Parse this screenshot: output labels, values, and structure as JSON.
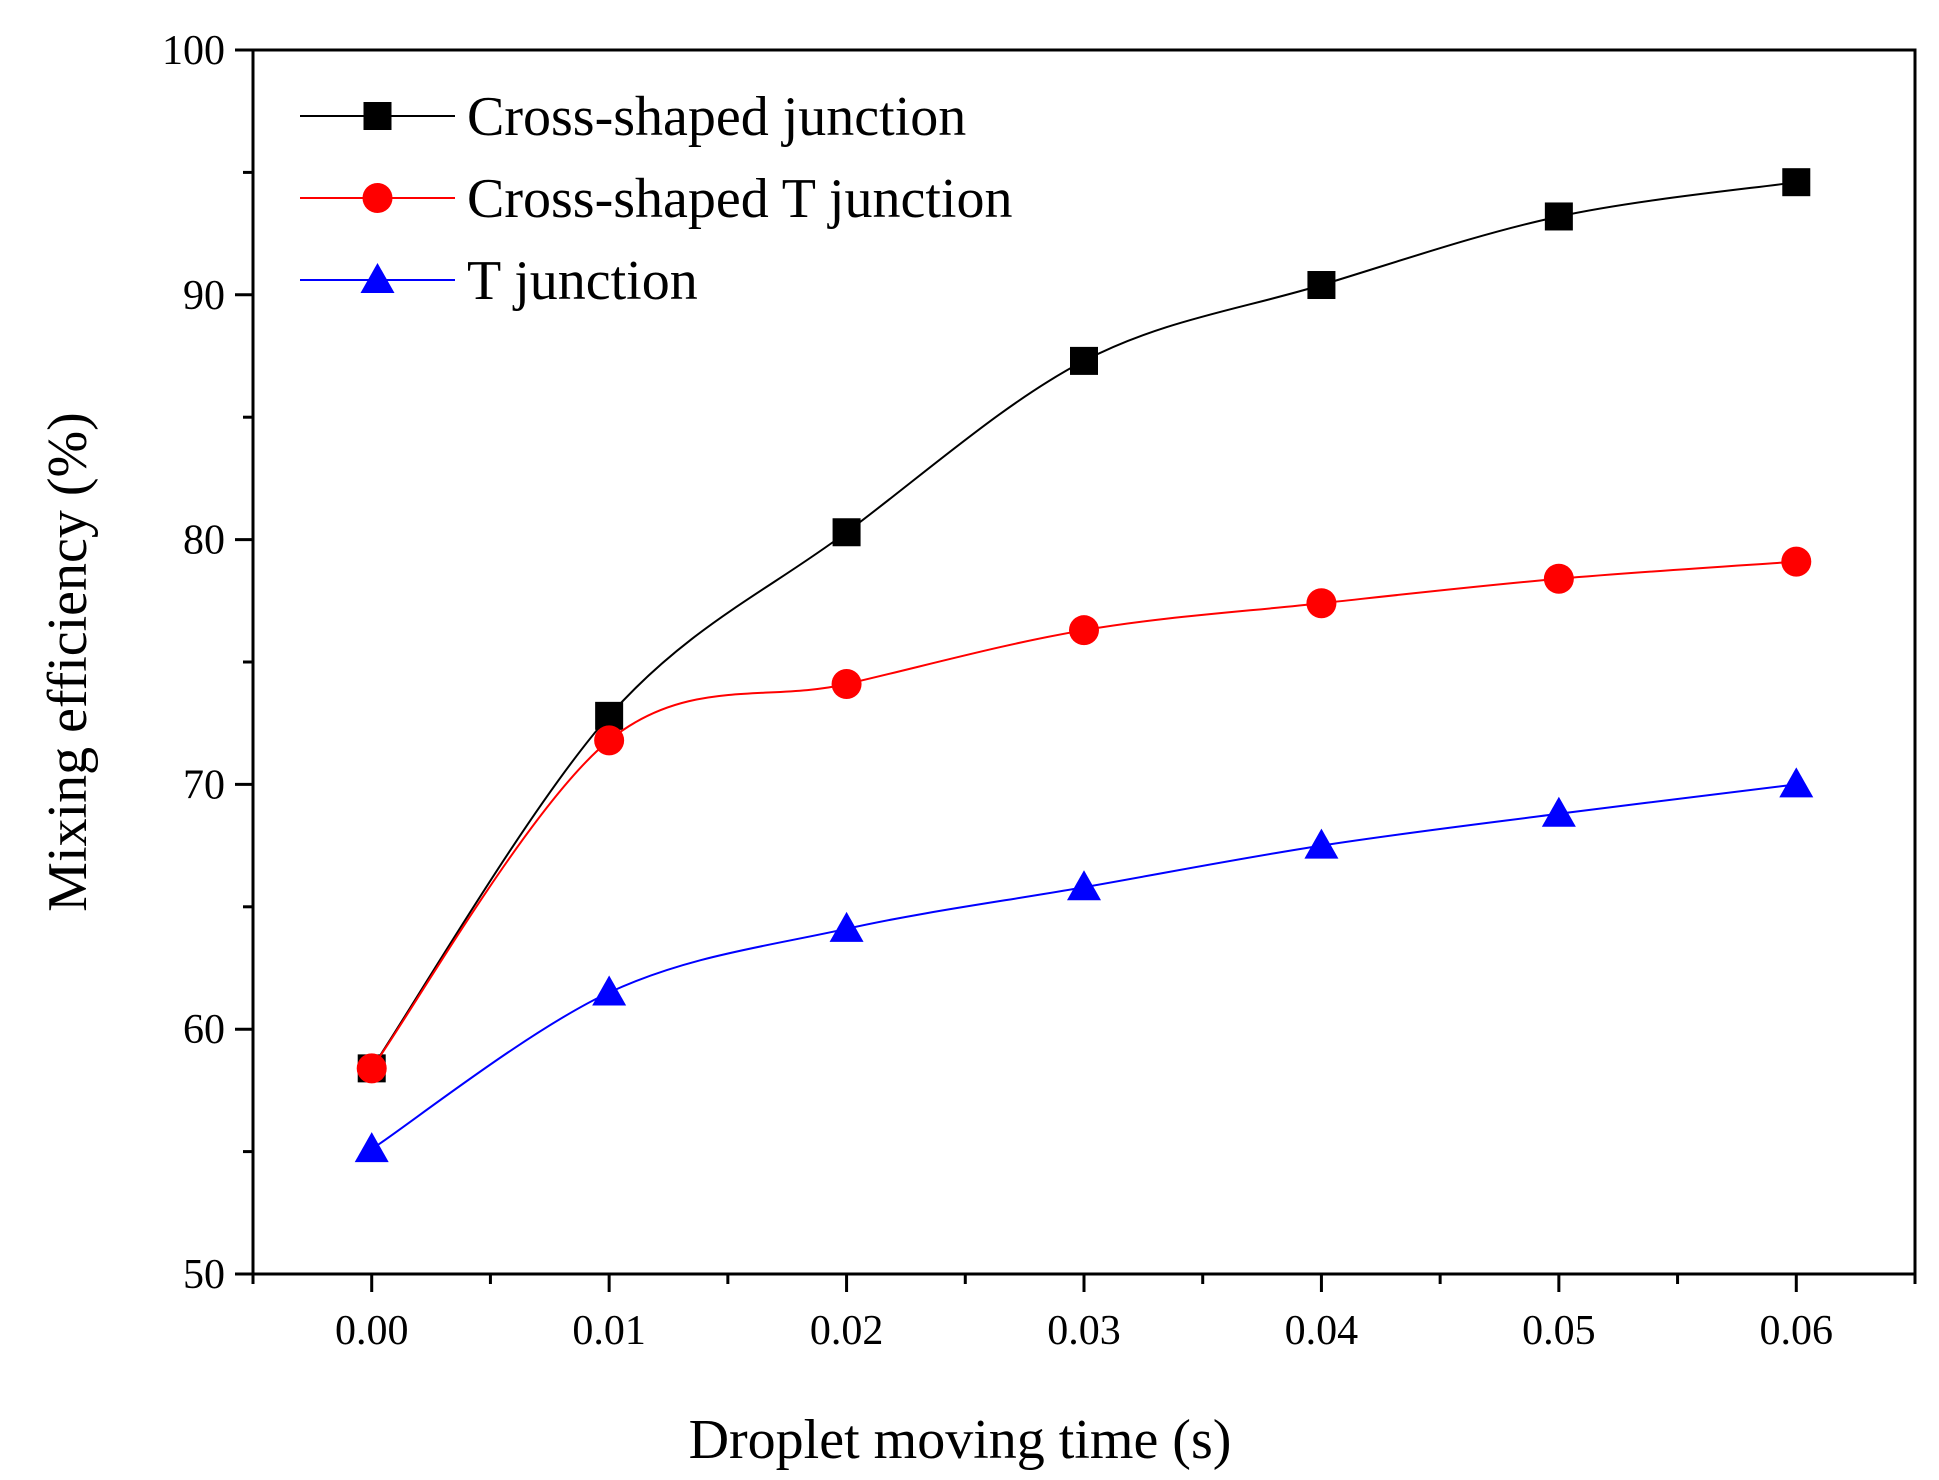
{
  "chart_data": {
    "type": "line",
    "title": "",
    "xlabel": "Droplet moving time (s)",
    "ylabel": "Mixing efficiency (%)",
    "xlim": [
      -0.005,
      0.065
    ],
    "ylim": [
      50,
      100
    ],
    "x": [
      0.0,
      0.01,
      0.02,
      0.03,
      0.04,
      0.05,
      0.06
    ],
    "x_tick_labels": [
      "0.00",
      "0.01",
      "0.02",
      "0.03",
      "0.04",
      "0.05",
      "0.06"
    ],
    "y_ticks": [
      50,
      60,
      70,
      80,
      90,
      100
    ],
    "y_tick_labels": [
      "50",
      "60",
      "70",
      "80",
      "90",
      "100"
    ],
    "grid": false,
    "legend_position": "top-left",
    "series": [
      {
        "name": "Cross-shaped junction",
        "color": "#000000",
        "marker": "square",
        "values": [
          58.4,
          72.8,
          80.3,
          87.3,
          90.4,
          93.2,
          94.6
        ]
      },
      {
        "name": "Cross-shaped T junction",
        "color": "#ff0000",
        "marker": "circle",
        "values": [
          58.4,
          71.8,
          74.1,
          76.3,
          77.4,
          78.4,
          79.1
        ]
      },
      {
        "name": "T junction",
        "color": "#0000ff",
        "marker": "triangle",
        "values": [
          55.1,
          61.5,
          64.1,
          65.8,
          67.5,
          68.8,
          70.0
        ]
      }
    ]
  }
}
